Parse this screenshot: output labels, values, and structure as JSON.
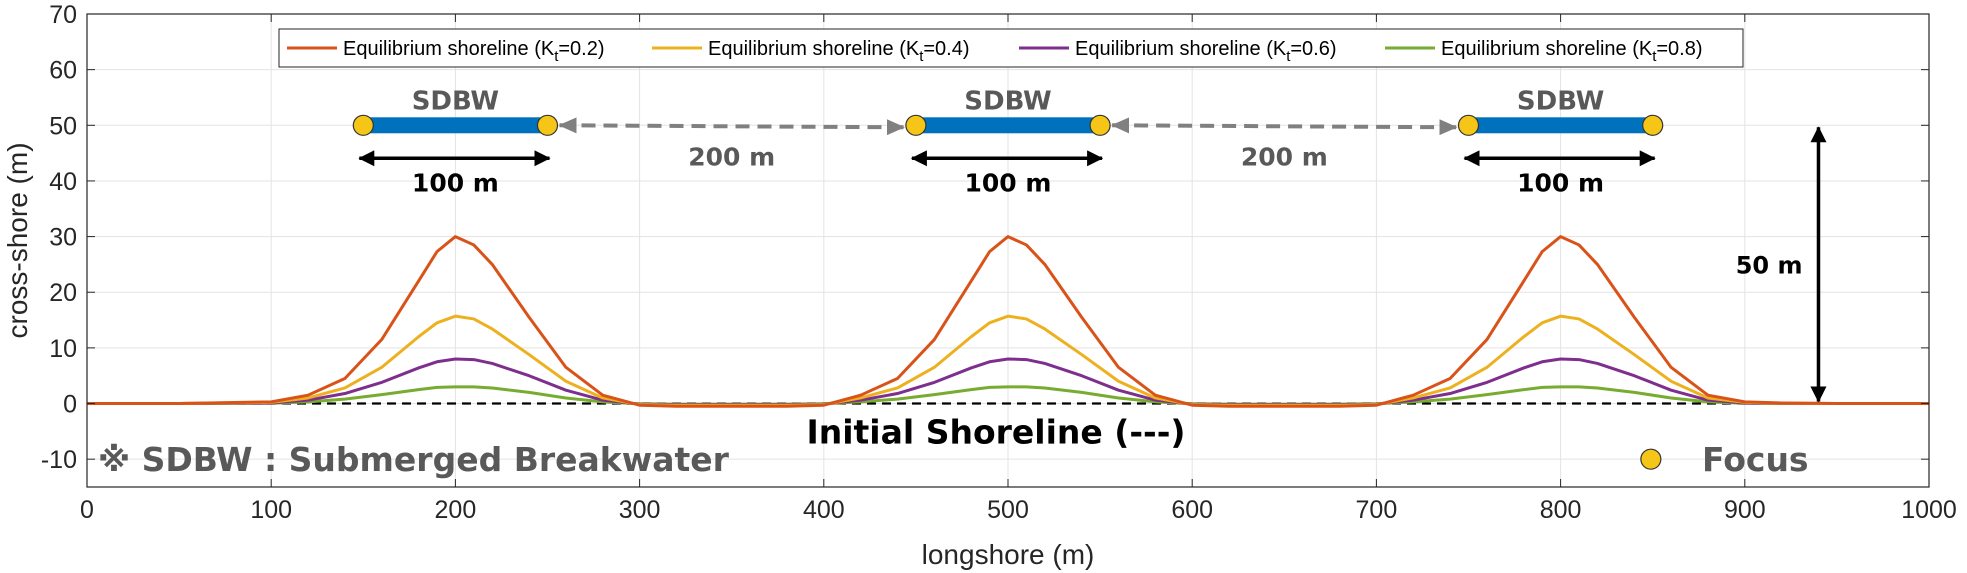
{
  "chart_data": {
    "type": "line",
    "xlabel": "longshore (m)",
    "ylabel": "cross-shore (m)",
    "xlim": [
      0,
      1000
    ],
    "ylim": [
      -15,
      70
    ],
    "xticks": [
      0,
      100,
      200,
      300,
      400,
      500,
      600,
      700,
      800,
      900,
      1000
    ],
    "yticks": [
      -10,
      0,
      10,
      20,
      30,
      40,
      50,
      60,
      70
    ],
    "grid": true,
    "legend_position": "top",
    "colors": {
      "kt02": "#D95319",
      "kt04": "#EDB120",
      "kt06": "#7E2F8E",
      "kt08": "#77AC30",
      "breakwater": "#0072BD",
      "focus": "#F5C518",
      "gap_arrow": "#808080",
      "dim_arrow": "#000000"
    },
    "series": [
      {
        "name": "Equilibrium shoreline (Kt=0.2)",
        "legend_main": "Equilibrium shoreline (K",
        "legend_sub": "t",
        "legend_tail": "=0.2)",
        "peak": 30,
        "peaks_x": [
          200,
          500,
          800
        ],
        "x": [
          0,
          50,
          100,
          120,
          140,
          160,
          180,
          190,
          200,
          210,
          220,
          240,
          260,
          280,
          300,
          320,
          350,
          380,
          400,
          420,
          440,
          460,
          480,
          490,
          500,
          510,
          520,
          540,
          560,
          580,
          600,
          620,
          650,
          680,
          700,
          720,
          740,
          760,
          780,
          790,
          800,
          810,
          820,
          840,
          860,
          880,
          900,
          920,
          950,
          1000
        ],
        "y": [
          0,
          0,
          0.3,
          1.5,
          4.5,
          11.5,
          22,
          27.3,
          30,
          28.5,
          25,
          15.5,
          6.5,
          1.5,
          -0.3,
          -0.5,
          -0.5,
          -0.5,
          -0.3,
          1.5,
          4.5,
          11.5,
          22,
          27.3,
          30,
          28.5,
          25,
          15.5,
          6.5,
          1.5,
          -0.3,
          -0.5,
          -0.5,
          -0.5,
          -0.3,
          1.5,
          4.5,
          11.5,
          22,
          27.3,
          30,
          28.5,
          25,
          15.5,
          6.5,
          1.5,
          0.3,
          0.1,
          0,
          0
        ]
      },
      {
        "name": "Equilibrium shoreline (Kt=0.4)",
        "legend_main": "Equilibrium shoreline (K",
        "legend_sub": "t",
        "legend_tail": "=0.4)",
        "peak": 15.7,
        "x": [
          0,
          50,
          100,
          120,
          140,
          160,
          180,
          190,
          200,
          210,
          220,
          240,
          260,
          280,
          300,
          320,
          350,
          380,
          400,
          420,
          440,
          460,
          480,
          490,
          500,
          510,
          520,
          540,
          560,
          580,
          600,
          620,
          650,
          680,
          700,
          720,
          740,
          760,
          780,
          790,
          800,
          810,
          820,
          840,
          860,
          880,
          900,
          920,
          950,
          1000
        ],
        "y": [
          0,
          0,
          0.2,
          1.0,
          2.8,
          6.5,
          12.0,
          14.5,
          15.7,
          15.2,
          13.4,
          8.8,
          4.0,
          1.0,
          -0.2,
          -0.3,
          -0.3,
          -0.3,
          -0.2,
          1.0,
          2.8,
          6.5,
          12.0,
          14.5,
          15.7,
          15.2,
          13.4,
          8.8,
          4.0,
          1.0,
          -0.2,
          -0.3,
          -0.3,
          -0.3,
          -0.2,
          1.0,
          2.8,
          6.5,
          12.0,
          14.5,
          15.7,
          15.2,
          13.4,
          8.8,
          4.0,
          1.0,
          0.2,
          0.05,
          0,
          0
        ]
      },
      {
        "name": "Equilibrium shoreline (Kt=0.6)",
        "legend_main": "Equilibrium shoreline (K",
        "legend_sub": "t",
        "legend_tail": "=0.6)",
        "peak": 8,
        "x": [
          0,
          50,
          100,
          120,
          140,
          160,
          180,
          190,
          200,
          210,
          220,
          240,
          260,
          280,
          300,
          320,
          350,
          380,
          400,
          420,
          440,
          460,
          480,
          490,
          500,
          510,
          520,
          540,
          560,
          580,
          600,
          620,
          650,
          680,
          700,
          720,
          740,
          760,
          780,
          790,
          800,
          810,
          820,
          840,
          860,
          880,
          900,
          920,
          950,
          1000
        ],
        "y": [
          0,
          0,
          0.1,
          0.6,
          1.8,
          3.8,
          6.4,
          7.5,
          8.0,
          7.9,
          7.2,
          5.0,
          2.4,
          0.6,
          -0.1,
          -0.2,
          -0.2,
          -0.2,
          -0.1,
          0.6,
          1.8,
          3.8,
          6.4,
          7.5,
          8.0,
          7.9,
          7.2,
          5.0,
          2.4,
          0.6,
          -0.1,
          -0.2,
          -0.2,
          -0.2,
          -0.1,
          0.6,
          1.8,
          3.8,
          6.4,
          7.5,
          8.0,
          7.9,
          7.2,
          5.0,
          2.4,
          0.6,
          0.1,
          0.02,
          0,
          0
        ]
      },
      {
        "name": "Equilibrium shoreline (Kt=0.8)",
        "legend_main": "Equilibrium shoreline (K",
        "legend_sub": "t",
        "legend_tail": "=0.8)",
        "peak": 3,
        "x": [
          0,
          50,
          100,
          120,
          140,
          160,
          180,
          190,
          200,
          210,
          220,
          240,
          260,
          280,
          300,
          320,
          350,
          380,
          400,
          420,
          440,
          460,
          480,
          490,
          500,
          510,
          520,
          540,
          560,
          580,
          600,
          620,
          650,
          680,
          700,
          720,
          740,
          760,
          780,
          790,
          800,
          810,
          820,
          840,
          860,
          880,
          900,
          920,
          950,
          1000
        ],
        "y": [
          0,
          0,
          0.05,
          0.3,
          0.8,
          1.6,
          2.5,
          2.9,
          3.0,
          3.0,
          2.8,
          2.0,
          1.0,
          0.3,
          -0.05,
          -0.1,
          -0.1,
          -0.1,
          -0.05,
          0.3,
          0.8,
          1.6,
          2.5,
          2.9,
          3.0,
          3.0,
          2.8,
          2.0,
          1.0,
          0.3,
          -0.05,
          -0.1,
          -0.1,
          -0.1,
          -0.05,
          0.3,
          0.8,
          1.6,
          2.5,
          2.9,
          3.0,
          3.0,
          2.8,
          2.0,
          1.0,
          0.3,
          0.05,
          0.01,
          0,
          0
        ]
      }
    ],
    "initial_shoreline": {
      "y": 0,
      "label": "Initial Shoreline (---)"
    },
    "breakwaters": [
      {
        "label": "SDBW",
        "x_start": 150,
        "x_end": 250,
        "y": 50,
        "length_label": "100 m"
      },
      {
        "label": "SDBW",
        "x_start": 450,
        "x_end": 550,
        "y": 50,
        "length_label": "100 m"
      },
      {
        "label": "SDBW",
        "x_start": 750,
        "x_end": 850,
        "y": 50,
        "length_label": "100 m"
      }
    ],
    "gaps": [
      {
        "x_start": 250,
        "x_end": 450,
        "y": 50,
        "label": "200 m"
      },
      {
        "x_start": 550,
        "x_end": 750,
        "y": 50,
        "label": "200 m"
      }
    ],
    "distance_arrow": {
      "x": 940,
      "y_start": 0,
      "y_end": 50,
      "label": "50 m"
    },
    "footnote": "※ SDBW : Submerged Breakwater",
    "focus_legend": {
      "label": "Focus"
    }
  }
}
